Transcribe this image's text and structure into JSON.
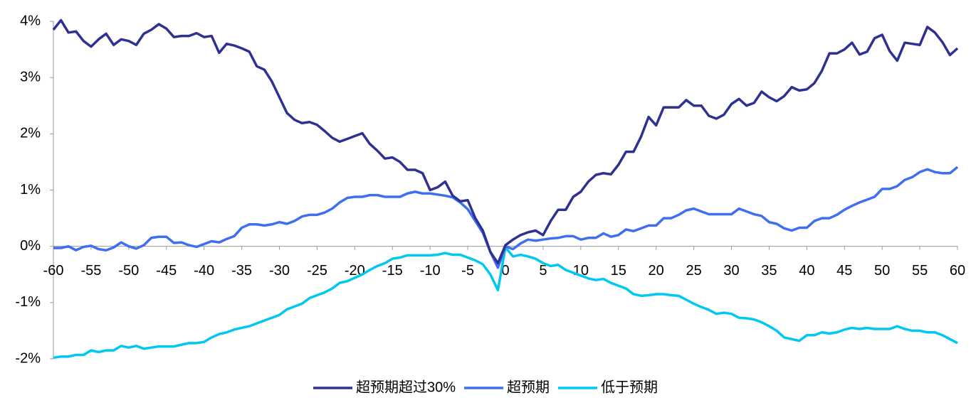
{
  "chart_data": {
    "type": "line",
    "x": [
      -60,
      -59,
      -58,
      -57,
      -56,
      -55,
      -54,
      -53,
      -52,
      -51,
      -50,
      -49,
      -48,
      -47,
      -46,
      -45,
      -44,
      -43,
      -42,
      -41,
      -40,
      -39,
      -38,
      -37,
      -36,
      -35,
      -34,
      -33,
      -32,
      -31,
      -30,
      -29,
      -28,
      -27,
      -26,
      -25,
      -24,
      -23,
      -22,
      -21,
      -20,
      -19,
      -18,
      -17,
      -16,
      -15,
      -14,
      -13,
      -12,
      -11,
      -10,
      -9,
      -8,
      -7,
      -6,
      -5,
      -4,
      -3,
      -2,
      -1,
      0,
      1,
      2,
      3,
      4,
      5,
      6,
      7,
      8,
      9,
      10,
      11,
      12,
      13,
      14,
      15,
      16,
      17,
      18,
      19,
      20,
      21,
      22,
      23,
      24,
      25,
      26,
      27,
      28,
      29,
      30,
      31,
      32,
      33,
      34,
      35,
      36,
      37,
      38,
      39,
      40,
      41,
      42,
      43,
      44,
      45,
      46,
      47,
      48,
      49,
      50,
      51,
      52,
      53,
      54,
      55,
      56,
      57,
      58,
      59,
      60
    ],
    "series": [
      {
        "name": "超预期超过30%",
        "color": "#2e3192",
        "values": [
          3.85,
          4.02,
          3.8,
          3.82,
          3.65,
          3.55,
          3.68,
          3.78,
          3.58,
          3.68,
          3.65,
          3.58,
          3.78,
          3.85,
          3.95,
          3.87,
          3.72,
          3.74,
          3.74,
          3.79,
          3.72,
          3.74,
          3.44,
          3.6,
          3.57,
          3.52,
          3.46,
          3.2,
          3.14,
          2.93,
          2.65,
          2.37,
          2.25,
          2.19,
          2.21,
          2.16,
          2.05,
          1.93,
          1.86,
          1.91,
          1.96,
          2.01,
          1.82,
          1.7,
          1.56,
          1.58,
          1.5,
          1.36,
          1.36,
          1.3,
          1.0,
          1.05,
          1.15,
          0.9,
          0.8,
          0.82,
          0.5,
          0.28,
          -0.1,
          -0.3,
          0.02,
          0.12,
          0.2,
          0.25,
          0.28,
          0.2,
          0.45,
          0.65,
          0.65,
          0.88,
          0.97,
          1.15,
          1.27,
          1.3,
          1.28,
          1.45,
          1.68,
          1.68,
          1.95,
          2.3,
          2.15,
          2.47,
          2.47,
          2.47,
          2.6,
          2.5,
          2.5,
          2.32,
          2.27,
          2.34,
          2.53,
          2.62,
          2.5,
          2.55,
          2.75,
          2.65,
          2.58,
          2.67,
          2.83,
          2.77,
          2.79,
          2.9,
          3.12,
          3.43,
          3.43,
          3.5,
          3.62,
          3.41,
          3.46,
          3.7,
          3.76,
          3.47,
          3.3,
          3.62,
          3.6,
          3.58,
          3.9,
          3.8,
          3.63,
          3.4,
          3.52
        ]
      },
      {
        "name": "超预期",
        "color": "#3f6ff0",
        "values": [
          -0.03,
          -0.03,
          0.0,
          -0.07,
          -0.01,
          0.01,
          -0.05,
          -0.07,
          -0.02,
          0.07,
          0.0,
          -0.04,
          0.02,
          0.15,
          0.17,
          0.17,
          0.06,
          0.07,
          0.02,
          -0.01,
          0.04,
          0.09,
          0.07,
          0.13,
          0.18,
          0.33,
          0.39,
          0.39,
          0.37,
          0.39,
          0.43,
          0.4,
          0.45,
          0.53,
          0.56,
          0.56,
          0.6,
          0.67,
          0.78,
          0.86,
          0.88,
          0.88,
          0.91,
          0.91,
          0.88,
          0.88,
          0.88,
          0.94,
          0.97,
          0.94,
          0.94,
          0.92,
          0.9,
          0.87,
          0.78,
          0.66,
          0.45,
          0.24,
          -0.1,
          -0.38,
          0.0,
          -0.05,
          0.05,
          0.12,
          0.1,
          0.12,
          0.14,
          0.15,
          0.18,
          0.18,
          0.12,
          0.15,
          0.15,
          0.23,
          0.17,
          0.2,
          0.3,
          0.27,
          0.32,
          0.37,
          0.37,
          0.5,
          0.5,
          0.56,
          0.64,
          0.67,
          0.62,
          0.57,
          0.57,
          0.57,
          0.57,
          0.67,
          0.62,
          0.57,
          0.54,
          0.43,
          0.4,
          0.32,
          0.28,
          0.33,
          0.33,
          0.45,
          0.5,
          0.5,
          0.56,
          0.65,
          0.72,
          0.78,
          0.83,
          0.88,
          1.02,
          1.02,
          1.07,
          1.18,
          1.23,
          1.32,
          1.37,
          1.32,
          1.3,
          1.3,
          1.41
        ]
      },
      {
        "name": "低于预期",
        "color": "#00c8f0",
        "values": [
          -1.98,
          -1.96,
          -1.96,
          -1.93,
          -1.93,
          -1.85,
          -1.88,
          -1.85,
          -1.85,
          -1.77,
          -1.8,
          -1.77,
          -1.82,
          -1.8,
          -1.78,
          -1.78,
          -1.78,
          -1.75,
          -1.72,
          -1.72,
          -1.7,
          -1.62,
          -1.56,
          -1.53,
          -1.48,
          -1.45,
          -1.42,
          -1.37,
          -1.32,
          -1.27,
          -1.22,
          -1.12,
          -1.07,
          -1.02,
          -0.92,
          -0.87,
          -0.82,
          -0.75,
          -0.65,
          -0.62,
          -0.56,
          -0.5,
          -0.42,
          -0.35,
          -0.3,
          -0.22,
          -0.2,
          -0.16,
          -0.16,
          -0.16,
          -0.16,
          -0.15,
          -0.12,
          -0.15,
          -0.15,
          -0.2,
          -0.25,
          -0.32,
          -0.5,
          -0.78,
          -0.02,
          -0.18,
          -0.15,
          -0.18,
          -0.22,
          -0.3,
          -0.35,
          -0.33,
          -0.42,
          -0.47,
          -0.52,
          -0.57,
          -0.6,
          -0.58,
          -0.65,
          -0.7,
          -0.75,
          -0.85,
          -0.88,
          -0.87,
          -0.85,
          -0.85,
          -0.87,
          -0.88,
          -0.95,
          -1.02,
          -1.08,
          -1.13,
          -1.2,
          -1.18,
          -1.2,
          -1.27,
          -1.28,
          -1.3,
          -1.35,
          -1.42,
          -1.5,
          -1.62,
          -1.65,
          -1.68,
          -1.58,
          -1.58,
          -1.53,
          -1.55,
          -1.53,
          -1.48,
          -1.45,
          -1.47,
          -1.45,
          -1.47,
          -1.47,
          -1.47,
          -1.42,
          -1.47,
          -1.5,
          -1.5,
          -1.53,
          -1.53,
          -1.58,
          -1.65,
          -1.72
        ]
      }
    ],
    "xlim": [
      -60,
      60
    ],
    "xticks": [
      -60,
      -55,
      -50,
      -45,
      -40,
      -35,
      -30,
      -25,
      -20,
      -15,
      -10,
      -5,
      0,
      5,
      10,
      15,
      20,
      25,
      30,
      35,
      40,
      45,
      50,
      55,
      60
    ],
    "ylim": [
      -2,
      4
    ],
    "yticks": [
      {
        "value": -2,
        "label": "-2%"
      },
      {
        "value": -1,
        "label": "-1%"
      },
      {
        "value": 0,
        "label": "0%"
      },
      {
        "value": 1,
        "label": "1%"
      },
      {
        "value": 2,
        "label": "2%"
      },
      {
        "value": 3,
        "label": "3%"
      },
      {
        "value": 4,
        "label": "4%"
      }
    ],
    "legend": "bottom"
  }
}
